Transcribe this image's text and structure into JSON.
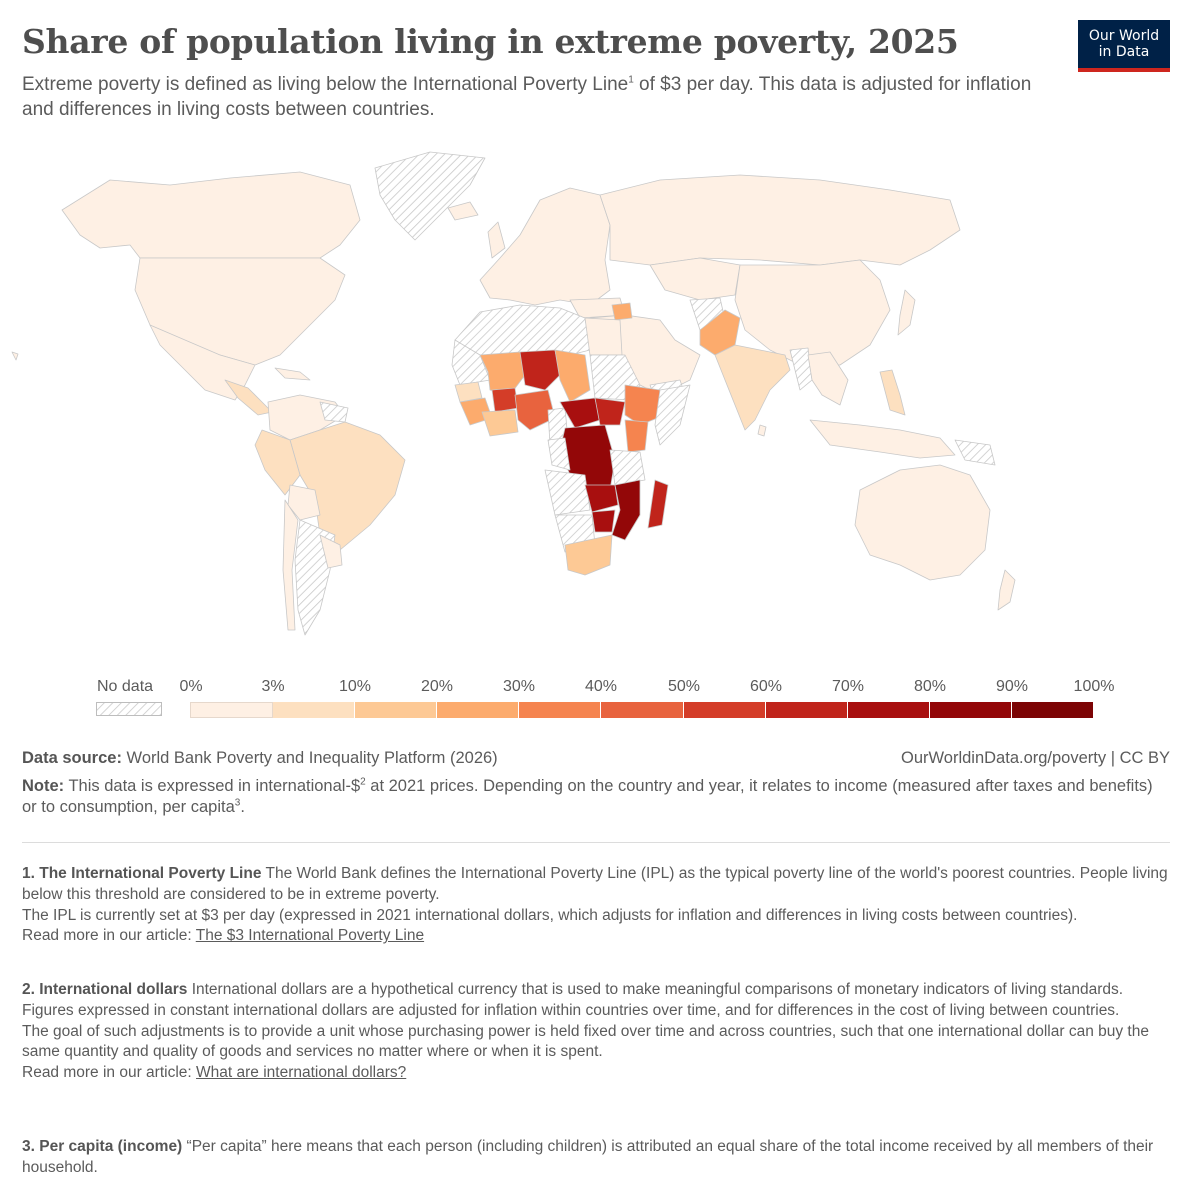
{
  "title": "Share of population living in extreme poverty, 2025",
  "subtitle": {
    "before": "Extreme poverty is defined as living below the International Poverty Line",
    "sup": "1",
    "after": " of $3 per day. This data is adjusted for inflation and differences in living costs between countries."
  },
  "logo": {
    "line1": "Our World",
    "line2": "in Data"
  },
  "legend": {
    "no_data_label": "No data",
    "labels": [
      "0%",
      "3%",
      "10%",
      "20%",
      "30%",
      "40%",
      "50%",
      "60%",
      "70%",
      "80%",
      "90%",
      "100%"
    ],
    "colors": [
      "#fef0e4",
      "#fde0c0",
      "#fdc995",
      "#fcab6d",
      "#f5844f",
      "#e8633e",
      "#d43d28",
      "#c0241b",
      "#a80f0f",
      "#930708",
      "#7c0405"
    ]
  },
  "source": {
    "label": "Data source:",
    "text": "World Bank Poverty and Inequality Platform (2026)",
    "right": "OurWorldinData.org/poverty | CC BY"
  },
  "note": {
    "label": "Note:",
    "text1": "This data is expressed in international-$",
    "sup1": "2",
    "text2": " at 2021 prices. Depending on the country and year, it relates to income (measured after taxes and benefits) or to consumption, per capita",
    "sup2": "3",
    "text3": "."
  },
  "footnotes": {
    "f1": {
      "heading": "1. The International Poverty Line",
      "p1": "The World Bank defines the International Poverty Line (IPL) as the typical poverty line of the world's poorest countries. People living below this threshold are considered to be in extreme poverty.",
      "p2": "The IPL is currently set at $3 per day (expressed in 2021 international dollars, which adjusts for inflation and differences in living costs between countries).",
      "read_prefix": "Read more in our article:",
      "link": "The $3 International Poverty Line"
    },
    "f2": {
      "heading": "2. International dollars",
      "p1": "International dollars are a hypothetical currency that is used to make meaningful comparisons of monetary indicators of living standards.",
      "p2": "Figures expressed in constant international dollars are adjusted for inflation within countries over time, and for differences in the cost of living between countries.",
      "p3": "The goal of such adjustments is to provide a unit whose purchasing power is held fixed over time and across countries, such that one international dollar can buy the same quantity and quality of goods and services no matter where or when it is spent.",
      "read_prefix": "Read more in our article:",
      "link": "What are international dollars?"
    },
    "f3": {
      "heading": "3. Per capita (income)",
      "p1": "“Per capita” here means that each person (including children) is attributed an equal share of the total income received by all members of their household."
    }
  }
}
